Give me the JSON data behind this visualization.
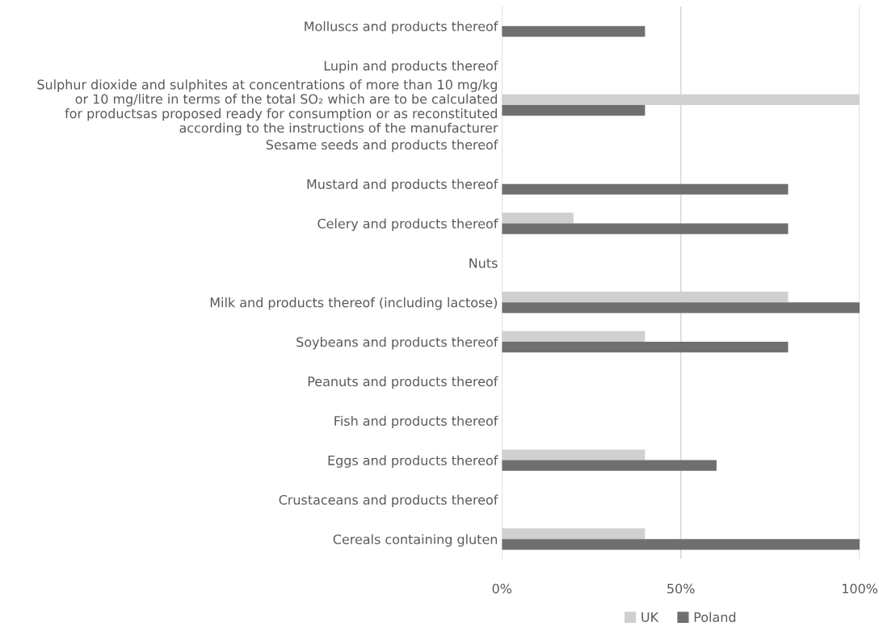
{
  "chart_data": {
    "type": "bar",
    "orientation": "horizontal",
    "categories": [
      "Molluscs and products thereof",
      "Lupin and products thereof",
      "Sulphur dioxide and sulphites at concentrations of more than 10 mg/kg\nor 10 mg/litre in terms of the total SO₂ which are to be calculated\nfor productsas proposed ready for consumption or as reconstituted\naccording to the instructions of the manufacturer",
      "Sesame seeds and products thereof",
      "Mustard and products thereof",
      "Celery and products thereof",
      "Nuts",
      "Milk and products thereof (including lactose)",
      "Soybeans and products thereof",
      "Peanuts and products thereof",
      "Fish and products thereof",
      "Eggs and products thereof",
      "Crustaceans and products thereof",
      "Cereals containing gluten"
    ],
    "series": [
      {
        "name": "UK",
        "color": "#d0d0d0",
        "values": [
          0,
          0,
          100,
          0,
          0,
          20,
          0,
          80,
          40,
          0,
          0,
          40,
          0,
          40
        ]
      },
      {
        "name": "Poland",
        "color": "#6f6f6f",
        "values": [
          40,
          0,
          40,
          0,
          80,
          80,
          0,
          100,
          80,
          0,
          0,
          60,
          0,
          100
        ]
      }
    ],
    "xlim": [
      0,
      100
    ],
    "xticks": [
      {
        "value": 0,
        "label": "0%"
      },
      {
        "value": 50,
        "label": "50%"
      },
      {
        "value": 100,
        "label": "100%"
      }
    ],
    "grid": "x",
    "legend": "bottom"
  }
}
